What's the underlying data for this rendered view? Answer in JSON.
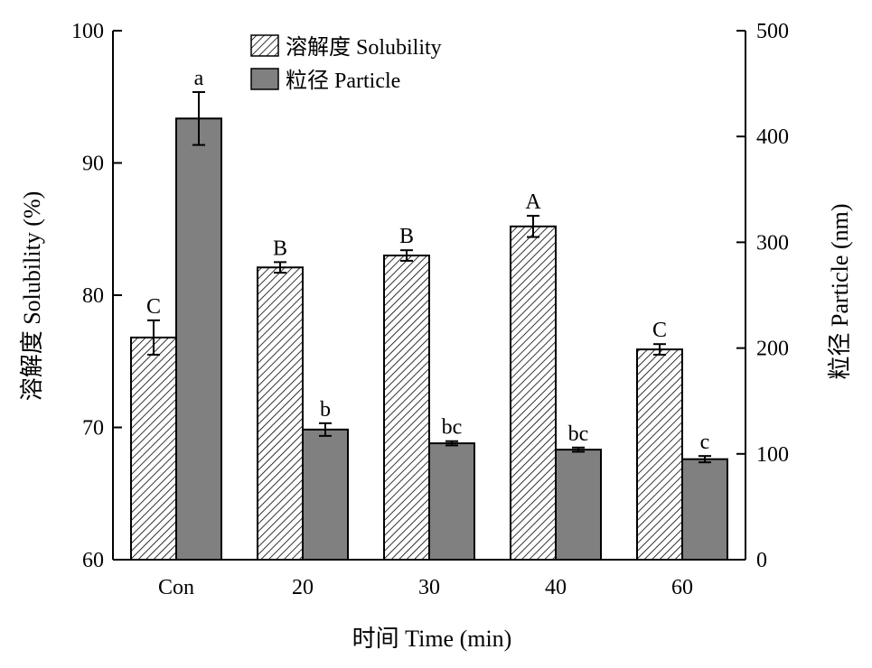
{
  "chart_data": {
    "type": "bar",
    "categories": [
      "Con",
      "20",
      "30",
      "40",
      "60"
    ],
    "xlabel": "时间 Time (min)",
    "ylabel": "溶解度 Solubility (%)",
    "ylabel_right": "粒径 Particle (nm)",
    "ylim": [
      60,
      100
    ],
    "ylim_right": [
      0,
      500
    ],
    "yticks": [
      60,
      70,
      80,
      90,
      100
    ],
    "yticks_right": [
      0,
      100,
      200,
      300,
      400,
      500
    ],
    "legend_position": "top-center",
    "grid": false,
    "series": [
      {
        "name": "溶解度 Solubility",
        "axis": "left",
        "pattern": "hatch",
        "color": "#ffffff",
        "values": [
          76.8,
          82.1,
          83.0,
          85.2,
          75.9
        ],
        "errors": [
          1.3,
          0.4,
          0.4,
          0.8,
          0.4
        ],
        "labels": [
          "C",
          "B",
          "B",
          "A",
          "C"
        ]
      },
      {
        "name": "粒径 Particle",
        "axis": "right",
        "pattern": "solid",
        "color": "#808080",
        "values": [
          417,
          123,
          110,
          104,
          95
        ],
        "errors": [
          25,
          6,
          2,
          2,
          3
        ],
        "labels": [
          "a",
          "b",
          "bc",
          "bc",
          "c"
        ]
      }
    ]
  }
}
